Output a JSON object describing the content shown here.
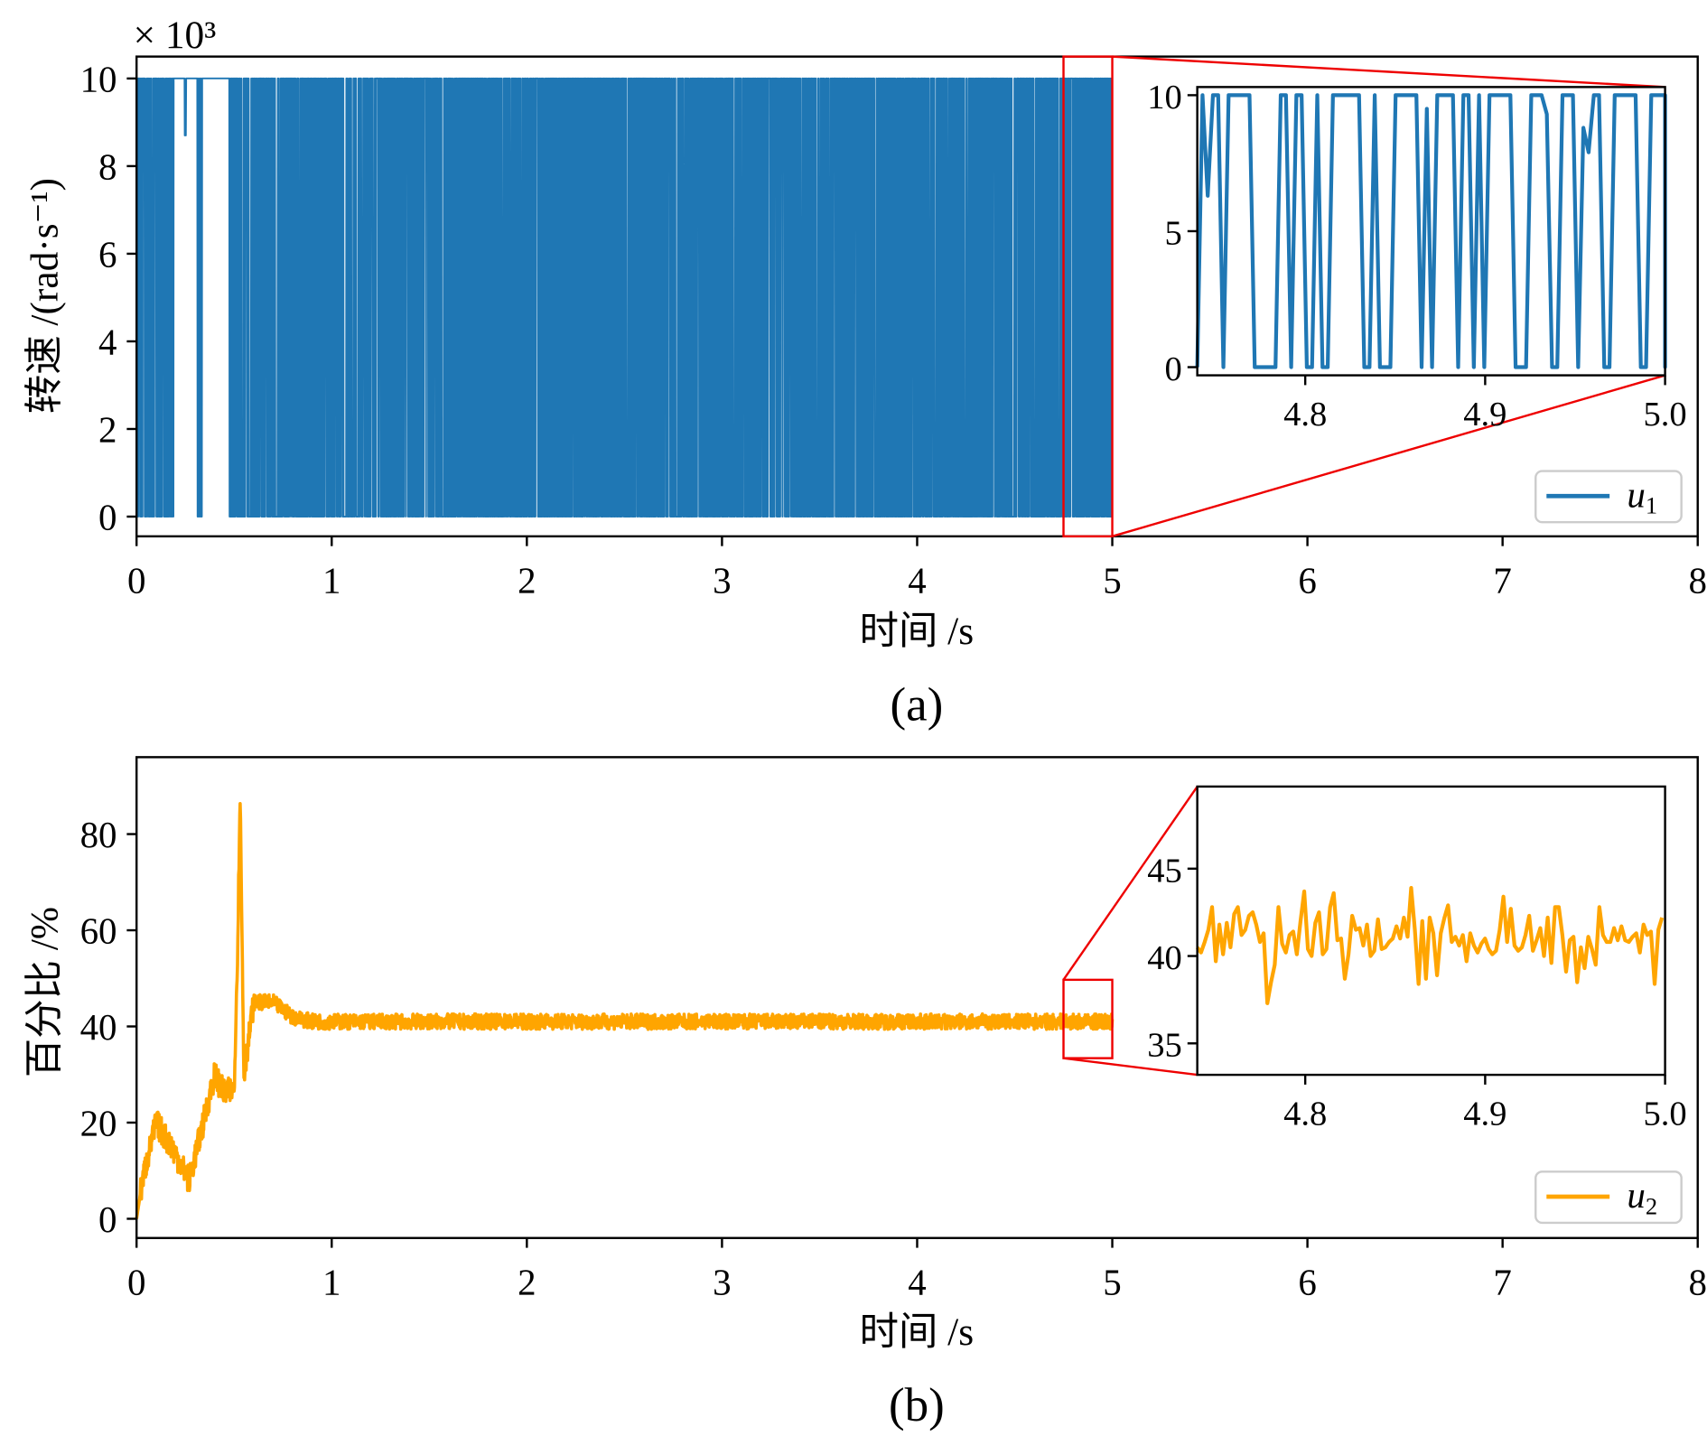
{
  "chart_data": [
    {
      "type": "line",
      "panel": "(a)",
      "caption": "(a)",
      "xlabel": "时间 /s",
      "ylabel": "转速 /(rad·s⁻¹)",
      "y_multiplier": "× 10³",
      "xlim": [
        0,
        8
      ],
      "ylim": [
        -0.45,
        10.5
      ],
      "xticks": [
        "0",
        "1",
        "2",
        "3",
        "4",
        "5",
        "6",
        "7",
        "8"
      ],
      "yticks": [
        "0",
        "2",
        "4",
        "6",
        "8",
        "10"
      ],
      "legend": {
        "label": "u",
        "sub": "1",
        "placement": "bottom-right"
      },
      "color": "#1f77b4",
      "series": {
        "name": "u1",
        "t_end": 5.0,
        "description_values": "rapid switching between 0 and 10 (×10³ rad/s)",
        "low": 0,
        "high": 10,
        "hold_segments": [
          [
            0.19,
            0.31,
            10
          ],
          [
            0.335,
            0.47,
            10
          ]
        ],
        "dips": [
          [
            0.25,
            8.7
          ]
        ]
      },
      "zoom_box": {
        "xlim": [
          4.75,
          5.0
        ],
        "ylim": [
          -0.45,
          10.5
        ]
      },
      "inset": {
        "xlim": [
          4.74,
          5.0
        ],
        "ylim": [
          -0.3,
          10.3
        ],
        "xticks": [
          "4.8",
          "4.9",
          "5.0"
        ],
        "yticks": [
          "0",
          "5",
          "10"
        ],
        "x_start": 4.74,
        "x_step": 0.0029,
        "values": [
          0,
          10,
          6.3,
          10,
          10,
          0,
          10,
          10,
          10,
          10,
          10,
          0,
          0,
          0,
          0,
          0,
          10,
          10,
          0,
          10,
          10,
          0,
          0,
          10,
          0,
          0,
          10,
          10,
          10,
          10,
          10,
          10,
          0,
          0,
          10,
          0,
          0,
          0,
          10,
          10,
          10,
          10,
          10,
          0,
          9.5,
          0,
          10,
          10,
          10,
          10,
          0,
          10,
          10,
          0,
          10,
          0,
          10,
          10,
          10,
          10,
          10,
          0,
          0,
          0,
          10,
          10,
          10,
          9.3,
          0,
          0,
          10,
          10,
          10,
          0,
          8.8,
          7.9,
          10,
          10,
          0,
          0,
          10,
          10,
          10,
          10,
          10,
          0,
          0,
          10,
          10,
          10,
          10,
          10,
          10,
          0,
          0,
          8.2,
          0,
          10,
          10,
          0,
          10,
          10
        ]
      }
    },
    {
      "type": "line",
      "panel": "(b)",
      "caption": "(b)",
      "xlabel": "时间 /s",
      "ylabel": "百分比 /%",
      "xlim": [
        0,
        8
      ],
      "ylim": [
        -4,
        96
      ],
      "xticks": [
        "0",
        "1",
        "2",
        "3",
        "4",
        "5",
        "6",
        "7",
        "8"
      ],
      "yticks": [
        "0",
        "20",
        "40",
        "60",
        "80"
      ],
      "legend": {
        "label": "u",
        "sub": "2",
        "placement": "bottom-right"
      },
      "color": "#ffa500",
      "series": {
        "name": "u2",
        "envelope_x": [
          0,
          0.03,
          0.1,
          0.18,
          0.27,
          0.33,
          0.4,
          0.45,
          0.5,
          0.52,
          0.53,
          0.55,
          0.6,
          0.7,
          0.8,
          0.9,
          1.0,
          5.0
        ],
        "envelope_y": [
          0,
          8,
          20,
          15,
          8,
          18,
          30,
          26,
          27,
          60,
          90,
          30,
          45,
          45,
          42,
          41,
          41,
          41
        ],
        "noise_amplitude": 1.6
      },
      "zoom_box": {
        "xlim": [
          4.75,
          5.0
        ],
        "ylim": [
          33.4,
          49.7
        ]
      },
      "inset": {
        "xlim": [
          4.74,
          5.0
        ],
        "ylim": [
          33.2,
          49.7
        ],
        "xticks": [
          "4.8",
          "4.9",
          "5.0"
        ],
        "yticks": [
          "35",
          "40",
          "45"
        ],
        "x_start": 4.74,
        "x_step": 0.00205,
        "values": [
          40.5,
          40.2,
          40.8,
          41.5,
          42.8,
          39.7,
          41.8,
          40.1,
          41.9,
          40.5,
          42.4,
          42.8,
          41.2,
          41.5,
          42.3,
          42.5,
          41.8,
          40.8,
          41.3,
          37.3,
          38.5,
          39.5,
          42.8,
          40.7,
          40.2,
          41.2,
          41.4,
          40.1,
          42.0,
          43.7,
          40.4,
          40.0,
          41.9,
          42.5,
          40.1,
          40.4,
          42.8,
          43.6,
          40.9,
          41.0,
          38.7,
          40.1,
          42.3,
          41.5,
          41.6,
          40.6,
          41.8,
          40.0,
          40.3,
          42.1,
          40.4,
          40.5,
          40.8,
          41.0,
          41.7,
          41.0,
          42.2,
          41.1,
          43.9,
          41.5,
          38.4,
          42.0,
          38.7,
          42.2,
          41.3,
          38.9,
          41.3,
          42.2,
          42.9,
          40.8,
          41.1,
          40.6,
          41.2,
          39.7,
          41.3,
          40.6,
          40.2,
          40.7,
          41.0,
          40.4,
          40.1,
          40.3,
          41.5,
          43.4,
          40.8,
          42.7,
          40.6,
          40.3,
          40.5,
          41.2,
          42.3,
          40.3,
          40.9,
          41.6,
          40.0,
          42.2,
          39.6,
          42.8,
          42.8,
          41.2,
          39.1,
          40.9,
          41.1,
          38.5,
          40.5,
          39.3,
          41.1,
          40.4,
          39.5,
          42.8,
          41.2,
          40.8,
          40.8,
          41.6,
          40.9,
          41.7,
          40.9,
          40.8,
          41.1,
          41.3,
          40.2,
          41.8,
          41.2,
          41.4,
          38.4,
          41.5,
          42.2
        ]
      }
    }
  ]
}
